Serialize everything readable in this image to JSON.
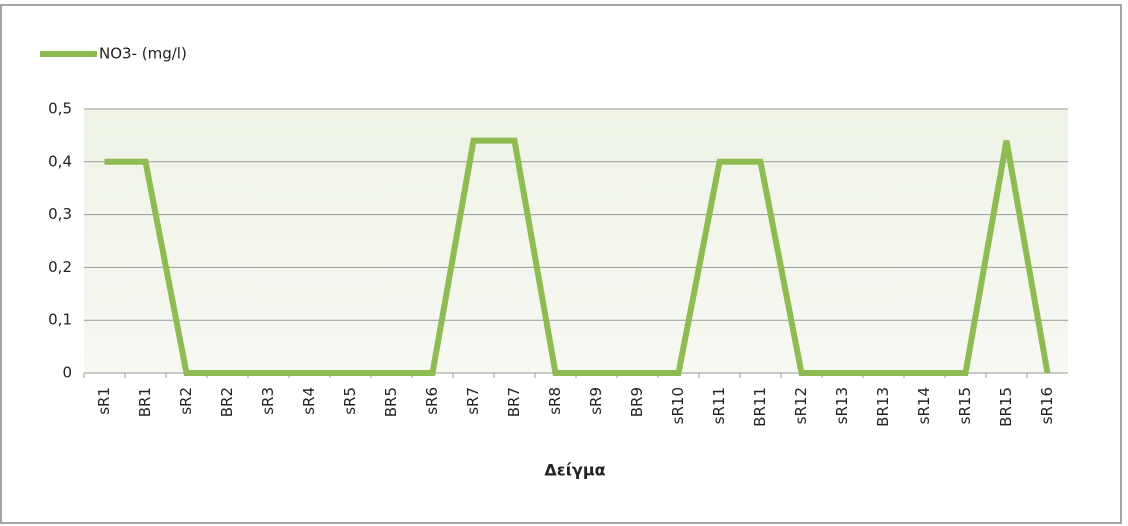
{
  "chart_data": {
    "type": "line",
    "x_label": "Δείγμα",
    "categories": [
      "sR1",
      "BR1",
      "sR2",
      "BR2",
      "sR3",
      "sR4",
      "sR5",
      "BR5",
      "sR6",
      "sR7",
      "BR7",
      "sR8",
      "sR9",
      "BR9",
      "sR10",
      "sR11",
      "BR11",
      "sR12",
      "sR13",
      "BR13",
      "sR14",
      "sR15",
      "BR15",
      "sR16"
    ],
    "series": [
      {
        "name": "NO3- (mg/l)",
        "color": "#8fbc52",
        "values": [
          0.4,
          0.4,
          0,
          0,
          0,
          0,
          0,
          0,
          0,
          0.44,
          0.44,
          0,
          0,
          0,
          0,
          0.4,
          0.4,
          0,
          0,
          0,
          0,
          0,
          0.44,
          0
        ]
      }
    ],
    "ylim": [
      0,
      0.5
    ],
    "yticks": [
      0,
      {
        "value": 0.1,
        "label": "0,1"
      },
      {
        "value": 0.2,
        "label": "0,2"
      },
      {
        "value": 0.3,
        "label": "0,3"
      },
      {
        "value": 0.4,
        "label": "0,4"
      },
      {
        "value": 0.5,
        "label": "0,5"
      }
    ],
    "grid": true,
    "legend": "top-left"
  }
}
